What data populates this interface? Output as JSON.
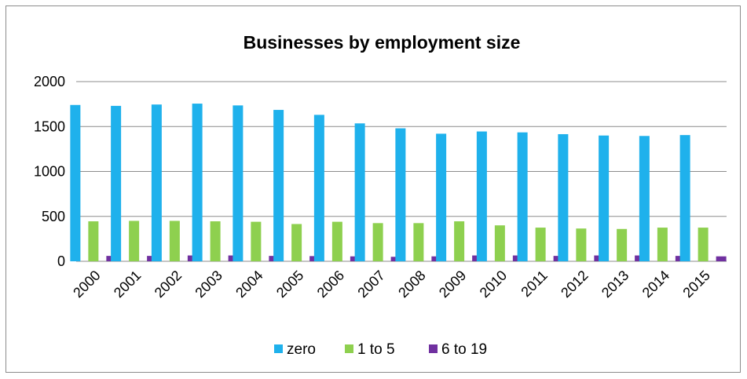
{
  "chart_data": {
    "type": "bar",
    "title": "Businesses by employment size",
    "xlabel": "",
    "ylabel": "",
    "ylim": [
      0,
      2000
    ],
    "yticks": [
      "0",
      "500",
      "1000",
      "1500",
      "2000"
    ],
    "grid": true,
    "legend_position": "bottom",
    "categories": [
      "2000",
      "2001",
      "2002",
      "2003",
      "2004",
      "2005",
      "2006",
      "2007",
      "2008",
      "2009",
      "2010",
      "2011",
      "2012",
      "2013",
      "2014",
      "2015"
    ],
    "series": [
      {
        "name": "zero",
        "color": "#1FB1EC",
        "values": [
          1740,
          1730,
          1745,
          1755,
          1735,
          1685,
          1630,
          1535,
          1480,
          1420,
          1445,
          1435,
          1415,
          1400,
          1395,
          1405
        ]
      },
      {
        "name": "1 to 5",
        "color": "#8ED04F",
        "values": [
          445,
          450,
          450,
          445,
          440,
          415,
          440,
          425,
          425,
          445,
          400,
          375,
          365,
          360,
          375,
          375
        ]
      },
      {
        "name": "6 to 19",
        "color": "#7030A0",
        "values": [
          60,
          60,
          65,
          65,
          60,
          58,
          55,
          50,
          55,
          65,
          65,
          60,
          65,
          65,
          60,
          55
        ]
      }
    ]
  }
}
